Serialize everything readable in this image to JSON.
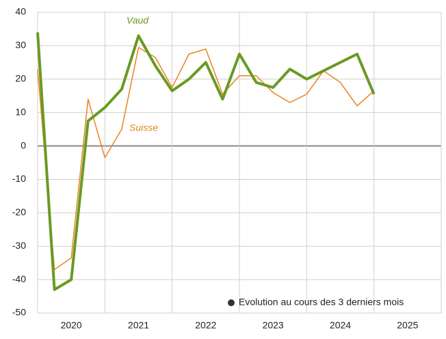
{
  "chart_data": {
    "type": "line",
    "categories": [
      "2020",
      "2021",
      "2022",
      "2023",
      "2024",
      "2025"
    ],
    "x": [
      2020,
      2020.25,
      2020.5,
      2020.75,
      2021,
      2021.25,
      2021.5,
      2021.75,
      2022,
      2022.25,
      2022.5,
      2022.75,
      2023,
      2023.25,
      2023.5,
      2023.75,
      2024,
      2024.25,
      2024.5,
      2024.75,
      2025
    ],
    "series": [
      {
        "name": "Vaud",
        "color": "#6a9a23",
        "values": [
          34,
          -43,
          -40,
          7.5,
          11.5,
          17,
          33,
          24,
          16.5,
          20,
          25,
          14,
          27.5,
          19,
          17.5,
          23,
          20,
          22.5,
          25,
          27.5,
          15.5
        ]
      },
      {
        "name": "Suisse",
        "color": "#e8821e",
        "values": [
          23,
          -37,
          -33.5,
          14,
          -3.5,
          5,
          29.5,
          26.5,
          17.5,
          27.5,
          29,
          15.5,
          21,
          21,
          16,
          13,
          15.5,
          22.5,
          19,
          12,
          16.5
        ]
      }
    ],
    "legend": "Evolution au cours des 3 derniers mois",
    "xlim": [
      2020,
      2026
    ],
    "xticks": [
      2020,
      2021,
      2022,
      2023,
      2024,
      2025,
      2026
    ],
    "ylim": [
      -50,
      40
    ],
    "yticks": [
      -50,
      -40,
      -30,
      -20,
      -10,
      0,
      10,
      20,
      30,
      40
    ],
    "grid": true
  }
}
